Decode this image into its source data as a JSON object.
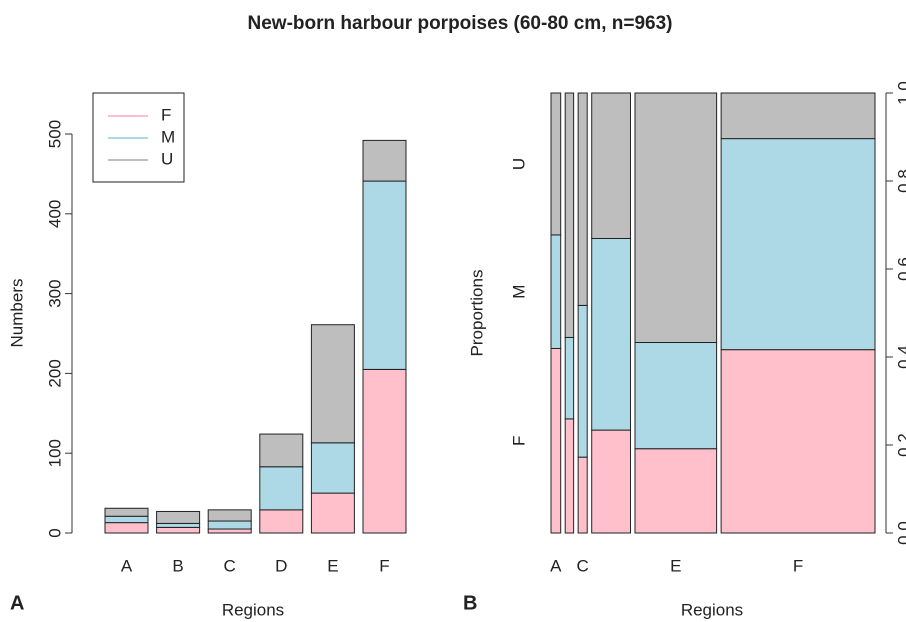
{
  "title": "New-born harbour porpoises (60-80 cm, n=963)",
  "chart_data": [
    {
      "type": "stacked-bar",
      "panel": "A",
      "xlabel": "Regions",
      "ylabel": "Numbers",
      "categories": [
        "A",
        "B",
        "C",
        "D",
        "E",
        "F"
      ],
      "series": [
        {
          "name": "F",
          "color": "#ffc0cb",
          "values": [
            13,
            7,
            5,
            29,
            50,
            205
          ]
        },
        {
          "name": "M",
          "color": "#add8e6",
          "values": [
            8,
            5,
            10,
            54,
            63,
            236
          ]
        },
        {
          "name": "U",
          "color": "#bebebe",
          "values": [
            10,
            15,
            14,
            41,
            148,
            51
          ]
        }
      ],
      "ylim": [
        0,
        550
      ],
      "yticks": [
        0,
        100,
        200,
        300,
        400,
        500
      ],
      "legend": "top-left"
    },
    {
      "type": "spineplot",
      "panel": "B",
      "xlabel": "Regions",
      "ylabel": "Proportions",
      "categories": [
        "A",
        null,
        "C",
        null,
        "E",
        "F"
      ],
      "series": [
        {
          "name": "F",
          "color": "#ffc0cb",
          "values": [
            13,
            7,
            5,
            29,
            50,
            205
          ]
        },
        {
          "name": "M",
          "color": "#add8e6",
          "values": [
            8,
            5,
            10,
            54,
            63,
            236
          ]
        },
        {
          "name": "U",
          "color": "#bebebe",
          "values": [
            10,
            15,
            14,
            41,
            148,
            51
          ]
        }
      ],
      "ylim": [
        0,
        1
      ],
      "yticks": [
        {
          "value": 0,
          "label": "0.0"
        },
        {
          "value": 0.2,
          "label": "0.2"
        },
        {
          "value": 0.4,
          "label": "0.4"
        },
        {
          "value": 0.6,
          "label": "0.6"
        },
        {
          "value": 0.8,
          "label": "0.8"
        },
        {
          "value": 1,
          "label": "1.0"
        }
      ]
    }
  ]
}
